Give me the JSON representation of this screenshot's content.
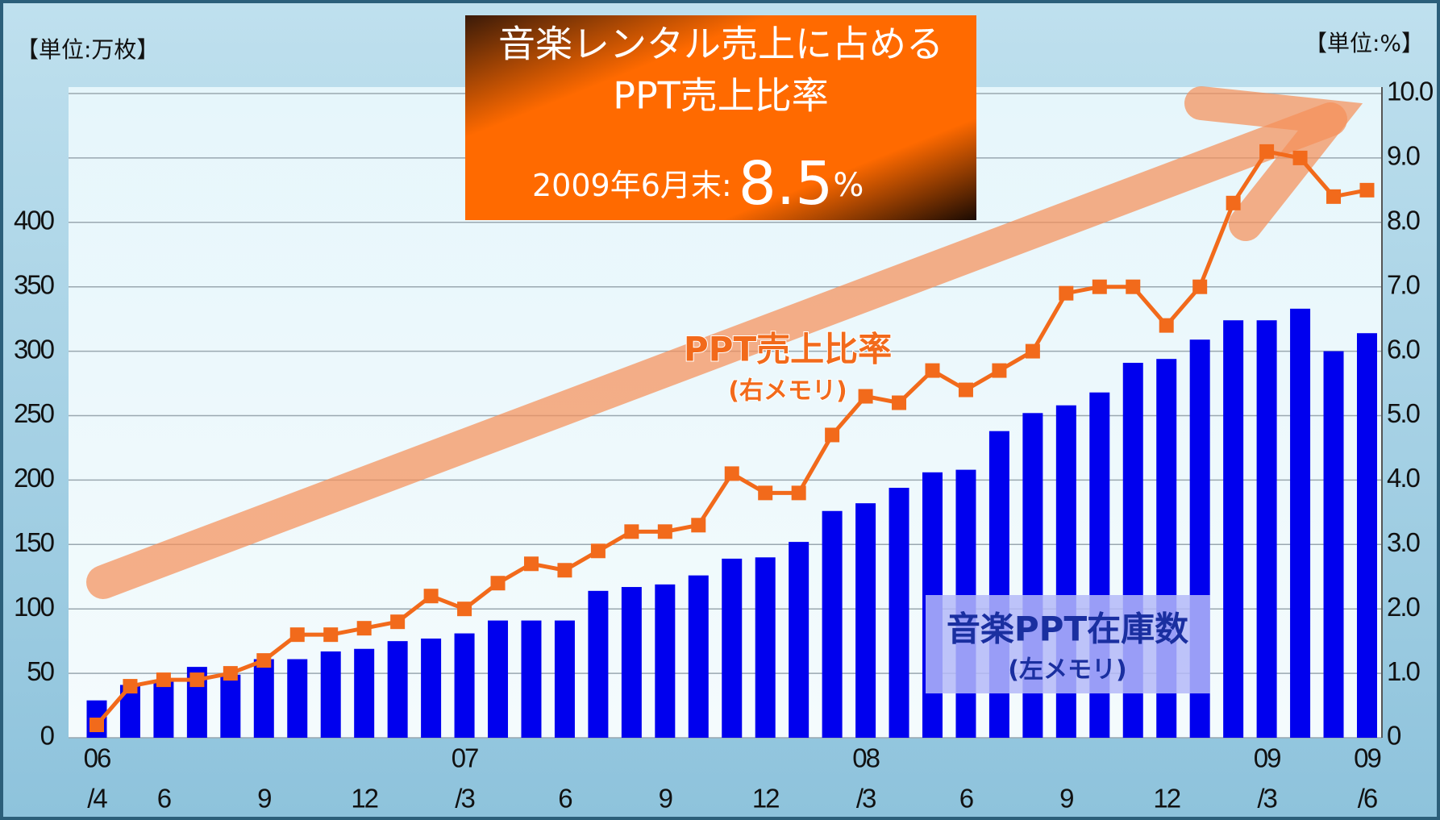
{
  "chart_data": {
    "type": "bar_line",
    "unit_left": "【単位:万枚】",
    "unit_right": "【単位:%】",
    "headline": {
      "lines": [
        "音楽レンタル売上に占める",
        "PPT売上比率"
      ],
      "date_label": "2009年6月末:",
      "value": 8.5,
      "unit": "%"
    },
    "categories": [
      [
        "06",
        "/4"
      ],
      null,
      "6",
      null,
      null,
      "9",
      null,
      null,
      "12",
      null,
      null,
      [
        "07",
        "/3"
      ],
      null,
      null,
      "6",
      null,
      null,
      "9",
      null,
      null,
      "12",
      null,
      null,
      [
        "08",
        "/3"
      ],
      null,
      null,
      "6",
      null,
      null,
      "9",
      null,
      null,
      "12",
      null,
      null,
      [
        "09",
        "/3"
      ],
      null,
      null,
      [
        "09",
        "/6"
      ]
    ],
    "series": [
      {
        "name": "音楽PPT在庫数",
        "note": "(左メモリ)",
        "color": "#0000ee",
        "values": [
          29,
          41,
          45,
          55,
          49,
          61,
          61,
          67,
          69,
          75,
          77,
          81,
          91,
          91,
          91,
          114,
          117,
          119,
          126,
          139,
          140,
          152,
          176,
          182,
          194,
          206,
          208,
          238,
          252,
          258,
          268,
          291,
          294,
          309,
          324,
          324,
          333,
          300,
          314
        ]
      },
      {
        "name": "PPT売上比率",
        "note": "(右メモリ)",
        "color": "#f26a1b",
        "axis": "y2",
        "values": [
          0.2,
          0.8,
          0.9,
          0.9,
          1.0,
          1.2,
          1.6,
          1.6,
          1.7,
          1.8,
          2.2,
          2.0,
          2.4,
          2.7,
          2.6,
          2.9,
          3.2,
          3.2,
          3.3,
          4.1,
          3.8,
          3.8,
          4.7,
          5.3,
          5.2,
          5.7,
          5.4,
          5.7,
          6.0,
          6.9,
          7.0,
          7.0,
          6.4,
          7.0,
          8.3,
          9.1,
          9.0,
          8.4,
          8.5
        ]
      }
    ],
    "ylim": [
      0,
      505
    ],
    "yticks": [
      0,
      50,
      100,
      150,
      200,
      250,
      300,
      350,
      400
    ],
    "y2lim": [
      0,
      10.1
    ],
    "y2ticks": [
      0,
      {
        "value": 1,
        "label": "1.0"
      },
      {
        "value": 2,
        "label": "2.0"
      },
      {
        "value": 3,
        "label": "3.0"
      },
      {
        "value": 4,
        "label": "4.0"
      },
      {
        "value": 5,
        "label": "5.0"
      },
      {
        "value": 6,
        "label": "6.0"
      },
      {
        "value": 7,
        "label": "7.0"
      },
      {
        "value": 8,
        "label": "8.0"
      },
      {
        "value": 9,
        "label": "9.0"
      },
      {
        "value": 10,
        "label": "10.0"
      }
    ],
    "grid": true
  }
}
